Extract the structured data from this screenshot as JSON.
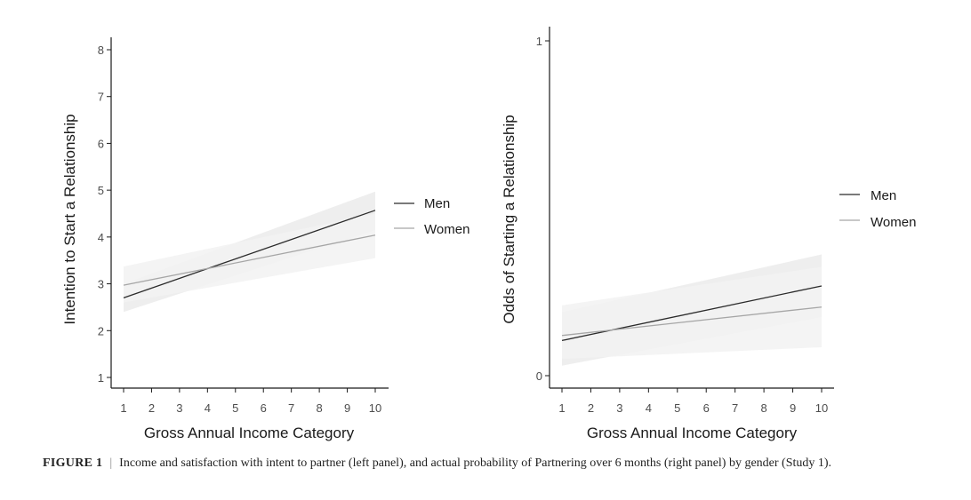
{
  "chart_data": [
    {
      "type": "line",
      "panel": "left",
      "xlabel": "Gross Annual Income Category",
      "ylabel": "Intention to Start a Relationship",
      "x_ticks": [
        1,
        2,
        3,
        4,
        5,
        6,
        7,
        8,
        9,
        10
      ],
      "y_ticks": [
        1,
        2,
        3,
        4,
        5,
        6,
        7,
        8
      ],
      "xlim": [
        1,
        10
      ],
      "ylim": [
        1,
        8
      ],
      "legend": [
        "Men",
        "Women"
      ],
      "legend_position": "right",
      "series": [
        {
          "name": "Men",
          "color": "#2b2b2b",
          "start": 2.7,
          "end": 4.57,
          "ci_start": [
            2.4,
            3.0
          ],
          "ci_end": [
            4.15,
            4.97
          ]
        },
        {
          "name": "Women",
          "color": "#a6a6a6",
          "start": 2.97,
          "end": 4.04,
          "ci_start": [
            2.6,
            3.37
          ],
          "ci_end": [
            3.55,
            4.5
          ]
        }
      ]
    },
    {
      "type": "line",
      "panel": "right",
      "xlabel": "Gross Annual Income Category",
      "ylabel": "Odds of Starting a Relationship",
      "x_ticks": [
        1,
        2,
        3,
        4,
        5,
        6,
        7,
        8,
        9,
        10
      ],
      "y_ticks": [
        0,
        1
      ],
      "xlim": [
        1,
        10
      ],
      "ylim": [
        0,
        1
      ],
      "legend": [
        "Men",
        "Women"
      ],
      "legend_position": "right",
      "series": [
        {
          "name": "Men",
          "color": "#2b2b2b",
          "start": 0.105,
          "end": 0.268,
          "ci_start": [
            0.03,
            0.19
          ],
          "ci_end": [
            0.175,
            0.362
          ]
        },
        {
          "name": "Women",
          "color": "#a6a6a6",
          "start": 0.12,
          "end": 0.205,
          "ci_start": [
            0.05,
            0.21
          ],
          "ci_end": [
            0.085,
            0.325
          ]
        }
      ]
    }
  ],
  "caption": {
    "label": "FIGURE 1",
    "separator": "|",
    "text": "Income and satisfaction with intent to partner (left panel), and actual probability of Partnering over 6 months (right panel) by gender (Study 1)."
  }
}
